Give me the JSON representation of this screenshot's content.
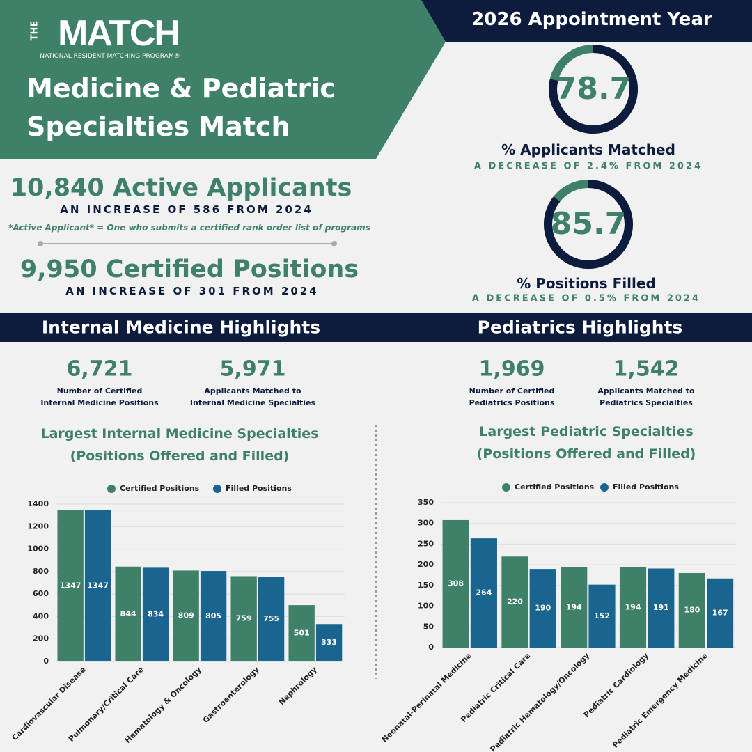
{
  "header": {
    "logo_small": "THE",
    "logo": "MATCH",
    "logo_subtitle": "NATIONAL RESIDENT MATCHING PROGRAM®",
    "title": "Medicine & Pediatric Specialties Match",
    "year": "2026 Appointment Year"
  },
  "stats": [
    {
      "headline": "10,840 Active Applicants",
      "change": "AN INCREASE OF 586 FROM 2024",
      "note": "*Active Applicant* = One who submits a certified rank order list of programs"
    },
    {
      "headline": "9,950 Certified Positions",
      "change": "AN INCREASE OF 301 FROM 2024"
    }
  ],
  "gauges": [
    {
      "value": 78.7,
      "label": "% Applicants Matched",
      "change": "A DECREASE OF 2.4% FROM 2024"
    },
    {
      "value": 85.7,
      "label": "% Positions Filled",
      "change": "A DECREASE OF 0.5% FROM 2024"
    }
  ],
  "sections": [
    {
      "title": "Internal Medicine Highlights",
      "items": [
        {
          "number": "6,721",
          "label": "Number of Certified Internal Medicine Positions"
        },
        {
          "number": "5,971",
          "label": "Applicants Matched to Internal Medicine Specialties"
        }
      ]
    },
    {
      "title": "Pediatrics Highlights",
      "items": [
        {
          "number": "1,969",
          "label": "Number of Certified Pediatrics Positions"
        },
        {
          "number": "1,542",
          "label": "Applicants Matched to Pediatrics Specialties"
        }
      ]
    }
  ],
  "chart_data": [
    {
      "type": "bar",
      "title": "Largest Internal Medicine Specialties",
      "subtitle": "(Positions Offered and Filled)",
      "categories": [
        "Cardiovascular Disease",
        "Pulmonary/Critical Care",
        "Hematology & Oncology",
        "Gastroenterology",
        "Nephrology"
      ],
      "series": [
        {
          "name": "Certified Positions",
          "color": "#3f8068",
          "values": [
            1347,
            844,
            809,
            759,
            501
          ]
        },
        {
          "name": "Filled Positions",
          "color": "#1a6590",
          "values": [
            1347,
            834,
            805,
            755,
            333
          ]
        }
      ],
      "ylim": [
        0,
        1400
      ],
      "yticks": [
        0,
        200,
        400,
        600,
        800,
        1000,
        1200,
        1400
      ],
      "grid": true,
      "legend": "top"
    },
    {
      "type": "bar",
      "title": "Largest Pediatric Specialties",
      "subtitle": "(Positions Offered and Filled)",
      "categories": [
        "Neonatal-Perinatal Medicine",
        "Pediatric Critical Care",
        "Pediatric Hematology/Oncology",
        "Pediatric Cardiology",
        "Pediatric Emergency Medicine"
      ],
      "series": [
        {
          "name": "Certified Positions",
          "color": "#3f8068",
          "values": [
            308,
            220,
            194,
            194,
            180
          ]
        },
        {
          "name": "Filled Positions",
          "color": "#1a6590",
          "values": [
            264,
            190,
            152,
            191,
            167
          ]
        }
      ],
      "ylim": [
        0,
        350
      ],
      "yticks": [
        0,
        50,
        100,
        150,
        200,
        250,
        300,
        350
      ],
      "grid": true,
      "legend": "top"
    }
  ]
}
